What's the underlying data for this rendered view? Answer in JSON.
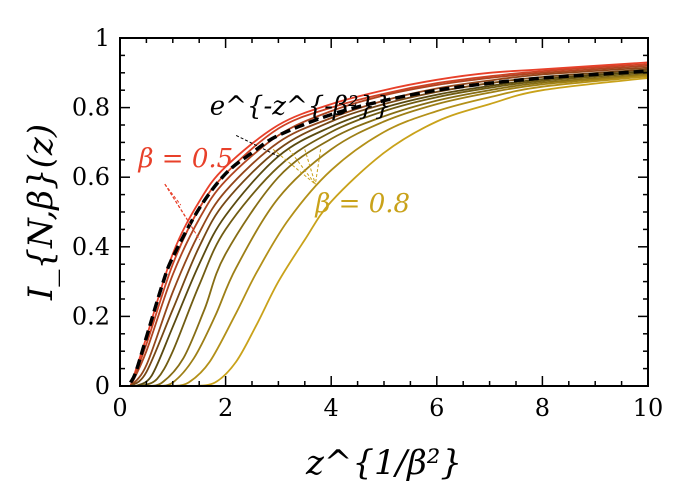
{
  "chart_data": {
    "type": "line",
    "xlabel": "z^{1/β²}",
    "ylabel": "I_{N,β}(z)",
    "xlim": [
      0,
      10
    ],
    "ylim": [
      0,
      1
    ],
    "x_ticks": [
      "0",
      "2",
      "4",
      "6",
      "8",
      "10"
    ],
    "y_ticks": [
      "0",
      "0.2",
      "0.4",
      "0.6",
      "0.8",
      "1"
    ],
    "grid": false,
    "annotations": {
      "reference_curve": "e^{-z^{-β²}}",
      "beta_low": "β = 0.5",
      "beta_high": "β = 0.8"
    },
    "colors": {
      "reference": "#000000",
      "beta_low": "#e8402a",
      "beta_mid": "#5a4a10",
      "beta_high": "#c9a21a"
    },
    "series": [
      {
        "x": [
          0.2,
          0.5,
          1,
          1.5,
          2,
          3,
          4,
          5,
          6,
          7,
          8,
          10
        ],
        "y": [
          0,
          0.14,
          0.38,
          0.53,
          0.63,
          0.75,
          0.81,
          0.85,
          0.88,
          0.9,
          0.91,
          0.93
        ]
      },
      {
        "x": [
          0.2,
          0.5,
          1,
          1.5,
          2,
          3,
          4,
          5,
          6,
          7,
          8,
          10
        ],
        "y": [
          0,
          0.12,
          0.35,
          0.51,
          0.61,
          0.74,
          0.8,
          0.84,
          0.87,
          0.89,
          0.905,
          0.925
        ]
      },
      {
        "x": [
          0.2,
          0.5,
          1,
          1.5,
          2,
          3,
          4,
          5,
          6,
          7,
          8,
          10
        ],
        "y": [
          0,
          0.1,
          0.32,
          0.48,
          0.59,
          0.72,
          0.79,
          0.835,
          0.865,
          0.885,
          0.9,
          0.92
        ]
      },
      {
        "x": [
          0.2,
          0.5,
          1,
          1.5,
          2,
          3,
          4,
          5,
          6,
          7,
          8,
          10
        ],
        "y": [
          0,
          0.06,
          0.27,
          0.44,
          0.56,
          0.7,
          0.77,
          0.82,
          0.855,
          0.878,
          0.895,
          0.915
        ]
      },
      {
        "x": [
          0.2,
          0.5,
          1,
          1.5,
          2,
          3,
          4,
          5,
          6,
          7,
          8,
          10
        ],
        "y": [
          0,
          0.04,
          0.22,
          0.4,
          0.53,
          0.68,
          0.76,
          0.81,
          0.845,
          0.87,
          0.888,
          0.91
        ]
      },
      {
        "x": [
          0.3,
          0.6,
          1,
          1.5,
          2,
          3,
          4,
          5,
          6,
          7,
          8,
          10
        ],
        "y": [
          0,
          0.03,
          0.17,
          0.35,
          0.49,
          0.66,
          0.745,
          0.8,
          0.837,
          0.862,
          0.882,
          0.905
        ]
      },
      {
        "x": [
          0.4,
          0.7,
          1,
          1.5,
          2,
          3,
          4,
          5,
          6,
          7,
          8,
          10
        ],
        "y": [
          0,
          0.02,
          0.1,
          0.29,
          0.45,
          0.63,
          0.73,
          0.79,
          0.83,
          0.857,
          0.877,
          0.9
        ]
      },
      {
        "x": [
          0.5,
          0.8,
          1.2,
          1.6,
          2,
          3,
          4,
          5,
          6,
          7,
          8,
          10
        ],
        "y": [
          0,
          0.01,
          0.08,
          0.22,
          0.38,
          0.6,
          0.71,
          0.775,
          0.82,
          0.85,
          0.872,
          0.895
        ]
      },
      {
        "x": [
          0.7,
          1.0,
          1.4,
          1.8,
          2.2,
          3,
          4,
          5,
          6,
          7,
          8,
          10
        ],
        "y": [
          0,
          0.01,
          0.08,
          0.2,
          0.34,
          0.54,
          0.68,
          0.76,
          0.81,
          0.843,
          0.867,
          0.893
        ]
      },
      {
        "x": [
          1.0,
          1.3,
          1.7,
          2.2,
          2.6,
          3.2,
          4,
          5,
          6,
          7,
          8,
          10
        ],
        "y": [
          0,
          0.01,
          0.07,
          0.21,
          0.33,
          0.48,
          0.62,
          0.73,
          0.79,
          0.83,
          0.86,
          0.89
        ]
      },
      {
        "x": [
          1.4,
          1.8,
          2.2,
          2.6,
          3,
          3.5,
          4,
          5,
          6,
          7,
          8,
          10
        ],
        "y": [
          0,
          0.01,
          0.07,
          0.18,
          0.3,
          0.42,
          0.53,
          0.67,
          0.76,
          0.81,
          0.85,
          0.885
        ]
      }
    ],
    "reference": {
      "x": [
        0.2,
        0.3,
        0.5,
        0.8,
        1,
        1.5,
        2,
        2.5,
        3,
        4,
        5,
        6,
        7,
        8,
        9,
        10
      ],
      "y": [
        0.01,
        0.04,
        0.14,
        0.29,
        0.37,
        0.51,
        0.61,
        0.67,
        0.72,
        0.78,
        0.82,
        0.85,
        0.87,
        0.885,
        0.895,
        0.905
      ]
    }
  }
}
